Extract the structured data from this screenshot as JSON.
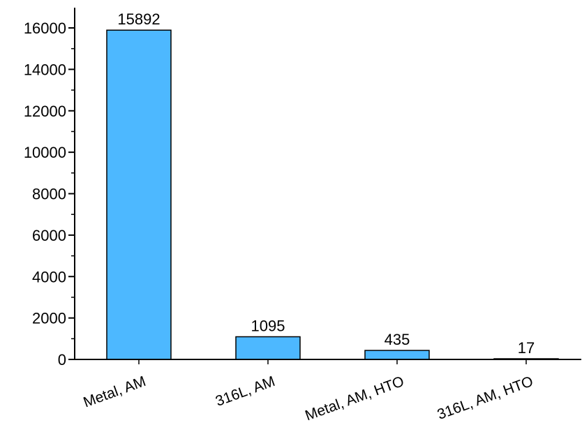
{
  "chart_data": {
    "type": "bar",
    "categories": [
      "Metal, AM",
      "316L, AM",
      "Metal, AM, HTO",
      "316L, AM, HTO"
    ],
    "values": [
      15892,
      1095,
      435,
      17
    ],
    "data_labels": [
      "15892",
      "1095",
      "435",
      "17"
    ],
    "title": "",
    "xlabel": "",
    "ylabel": "",
    "ylim": [
      0,
      16000
    ],
    "yticks": [
      0,
      2000,
      4000,
      6000,
      8000,
      10000,
      12000,
      14000,
      16000
    ],
    "ytick_labels": [
      "0",
      "2000",
      "4000",
      "6000",
      "8000",
      "10000",
      "12000",
      "14000",
      "16000"
    ],
    "grid": false,
    "legend": "none",
    "colors": {
      "bar_fill": "#4db8ff",
      "bar_edge": "#000000",
      "axis": "#000000"
    }
  }
}
